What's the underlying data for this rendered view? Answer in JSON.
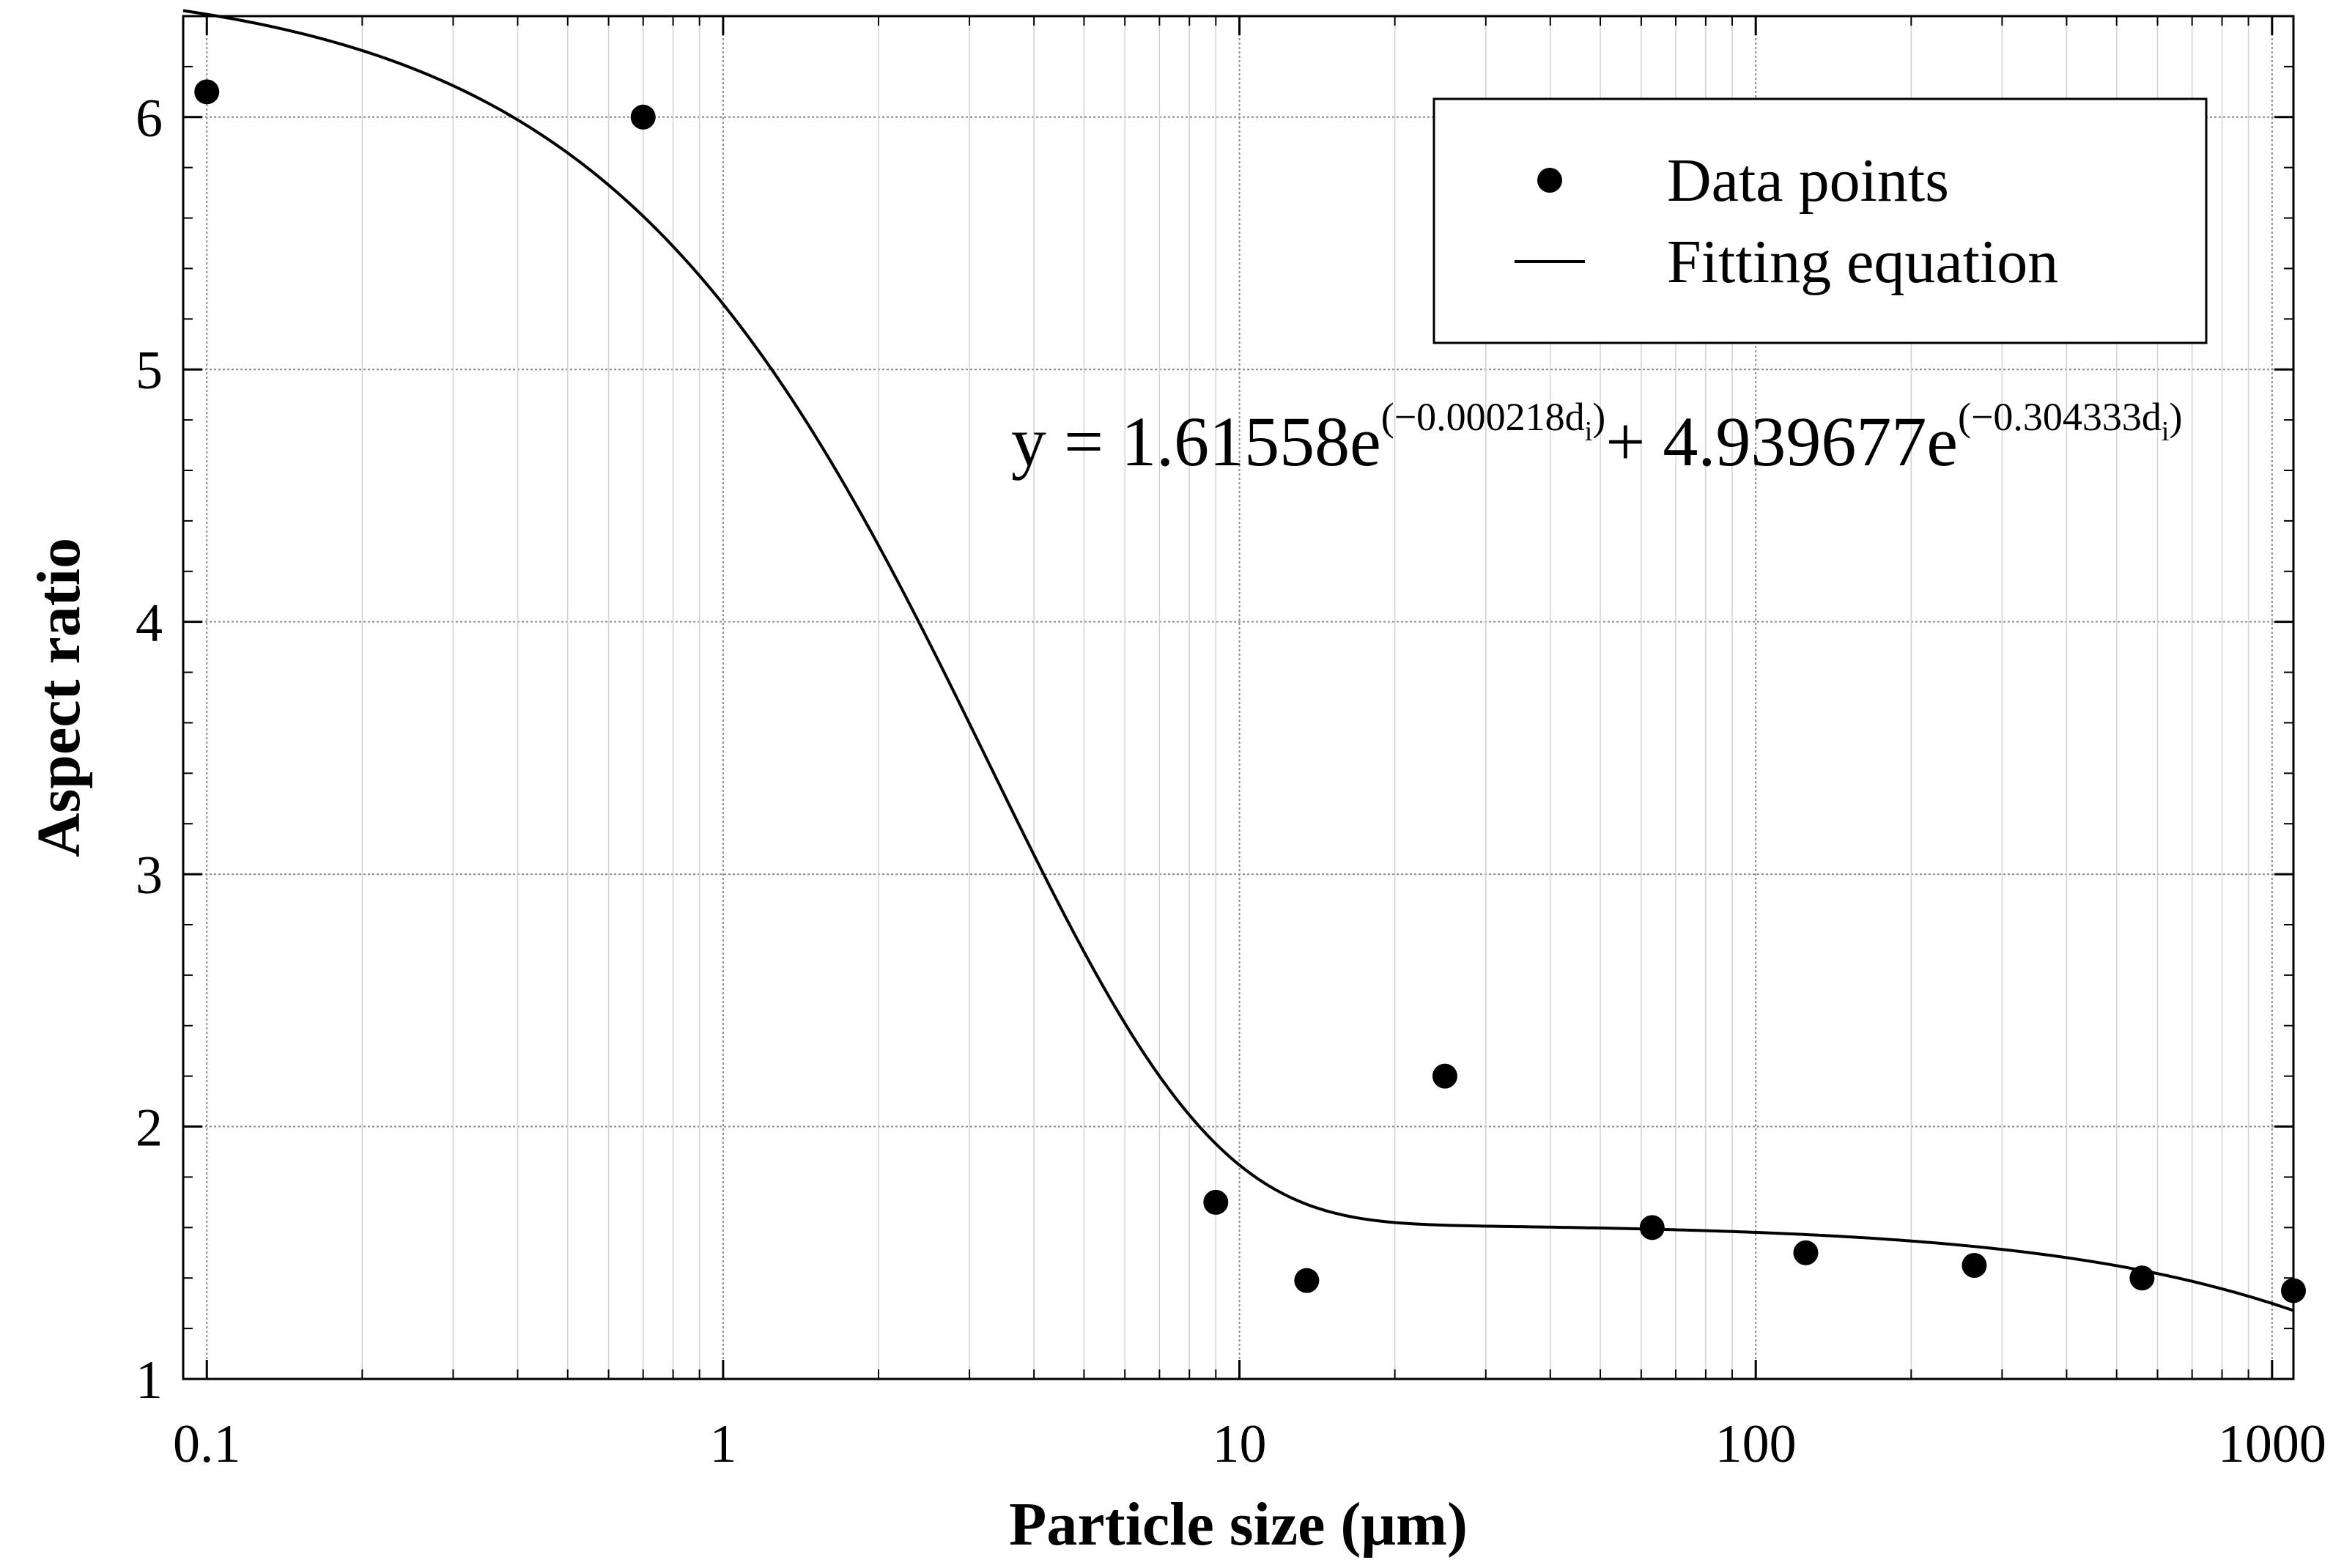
{
  "chart_data": {
    "type": "scatter",
    "title": "",
    "xlabel": "Particle size (μm)",
    "ylabel": "Aspect ratio",
    "xscale": "log",
    "xlim": [
      0.09,
      1100
    ],
    "ylim": [
      1,
      6.4
    ],
    "grid": true,
    "x_ticks": [
      {
        "value": 0.1,
        "label": "0.1"
      },
      {
        "value": 1,
        "label": "1"
      },
      {
        "value": 10,
        "label": "10"
      },
      {
        "value": 100,
        "label": "100"
      },
      {
        "value": 1000,
        "label": "1000"
      }
    ],
    "y_ticks": [
      {
        "value": 1,
        "label": "1"
      },
      {
        "value": 2,
        "label": "2"
      },
      {
        "value": 3,
        "label": "3"
      },
      {
        "value": 4,
        "label": "4"
      },
      {
        "value": 5,
        "label": "5"
      },
      {
        "value": 6,
        "label": "6"
      }
    ],
    "series": [
      {
        "name": "Data points",
        "kind": "scatter",
        "x": [
          0.1,
          0.7,
          9,
          13.5,
          25,
          63,
          125,
          265,
          560,
          1100
        ],
        "y": [
          6.1,
          6.0,
          1.7,
          1.39,
          2.2,
          1.6,
          1.5,
          1.45,
          1.4,
          1.35
        ]
      },
      {
        "name": "Fitting equation",
        "kind": "line",
        "a": 1.61558,
        "b": -0.000218,
        "c": 4.939677,
        "d": -0.304333
      }
    ],
    "legend": {
      "position": "top-right",
      "entries": [
        "Data points",
        "Fitting equation"
      ]
    },
    "annotation": {
      "prefix": "y = 1.61558e",
      "exp1": "(−0.000218d",
      "exp1_sub": "i",
      "exp1_close": ")",
      "middle": "+ 4.939677e",
      "exp2": "(−0.304333d",
      "exp2_sub": "i",
      "exp2_close": ")"
    }
  }
}
